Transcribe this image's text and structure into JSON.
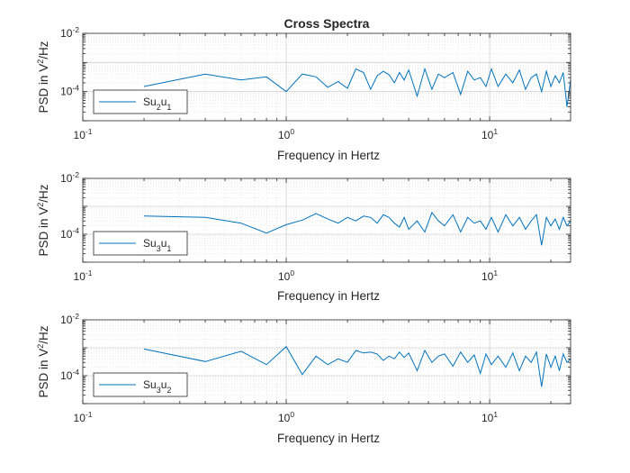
{
  "chart_data": [
    {
      "type": "line",
      "title": "Cross Spectra",
      "xlabel": "Frequency in Hertz",
      "ylabel": "PSD in V²/Hz",
      "xscale": "log",
      "yscale": "log",
      "xlim": [
        0.1,
        25
      ],
      "ylim": [
        1e-05,
        0.01
      ],
      "xticks": [
        {
          "value": 0.1,
          "base": "10",
          "exp": "-1"
        },
        {
          "value": 1,
          "base": "10",
          "exp": "0"
        },
        {
          "value": 10,
          "base": "10",
          "exp": "1"
        }
      ],
      "yticks": [
        {
          "value": 0.0001,
          "base": "10",
          "exp": "-4"
        },
        {
          "value": 0.01,
          "base": "10",
          "exp": "-2"
        }
      ],
      "grid": true,
      "minor_grid": true,
      "legend_position": "bottom-left",
      "series": [
        {
          "legend": {
            "base": "Su",
            "sub1": "2",
            "mid": "u",
            "sub2": "1"
          },
          "color": "#0072BD",
          "x": [
            0.2,
            0.4,
            0.6,
            0.8,
            1.0,
            1.2,
            1.4,
            1.6,
            1.8,
            2.0,
            2.2,
            2.4,
            2.6,
            2.8,
            3.0,
            3.2,
            3.4,
            3.6,
            3.8,
            4.0,
            4.4,
            4.8,
            5.2,
            5.6,
            6.0,
            6.6,
            7.2,
            7.8,
            8.4,
            9.0,
            9.6,
            10.2,
            11.0,
            12.0,
            13.0,
            14.0,
            15.0,
            16.0,
            17.0,
            18.0,
            19.0,
            20.0,
            21.0,
            22.0,
            23.0,
            24.0,
            25.0
          ],
          "y": [
            0.00015,
            0.0004,
            0.00025,
            0.00032,
            0.0001,
            0.0004,
            0.00032,
            0.00014,
            0.00022,
            0.00013,
            0.0006,
            0.00045,
            0.00012,
            0.00035,
            0.0005,
            0.00038,
            0.0002,
            0.00045,
            0.00025,
            0.00055,
            7e-05,
            0.0006,
            0.00012,
            0.0004,
            0.0003,
            0.00045,
            8e-05,
            0.0005,
            0.00025,
            0.0003,
            0.00015,
            0.0006,
            0.00015,
            0.0004,
            0.0002,
            0.00055,
            0.00012,
            0.0003,
            0.0004,
            0.0001,
            0.0005,
            0.00015,
            0.00035,
            0.0002,
            0.00045,
            3e-05,
            0.00025
          ]
        }
      ]
    },
    {
      "type": "line",
      "title": "",
      "xlabel": "Frequency in Hertz",
      "ylabel": "PSD in V²/Hz",
      "xscale": "log",
      "yscale": "log",
      "xlim": [
        0.1,
        25
      ],
      "ylim": [
        1e-05,
        0.01
      ],
      "xticks": [
        {
          "value": 0.1,
          "base": "10",
          "exp": "-1"
        },
        {
          "value": 1,
          "base": "10",
          "exp": "0"
        },
        {
          "value": 10,
          "base": "10",
          "exp": "1"
        }
      ],
      "yticks": [
        {
          "value": 0.0001,
          "base": "10",
          "exp": "-4"
        },
        {
          "value": 0.01,
          "base": "10",
          "exp": "-2"
        }
      ],
      "grid": true,
      "minor_grid": true,
      "legend_position": "bottom-left",
      "series": [
        {
          "legend": {
            "base": "Su",
            "sub1": "3",
            "mid": "u",
            "sub2": "1"
          },
          "color": "#0072BD",
          "x": [
            0.2,
            0.4,
            0.6,
            0.8,
            1.0,
            1.2,
            1.4,
            1.6,
            1.8,
            2.0,
            2.2,
            2.4,
            2.6,
            2.8,
            3.0,
            3.2,
            3.4,
            3.6,
            3.8,
            4.0,
            4.4,
            4.8,
            5.2,
            5.6,
            6.0,
            6.6,
            7.2,
            7.8,
            8.4,
            9.0,
            9.6,
            10.2,
            11.0,
            12.0,
            13.0,
            14.0,
            15.0,
            16.0,
            17.0,
            18.0,
            19.0,
            20.0,
            21.0,
            22.0,
            23.0,
            24.0,
            25.0
          ],
          "y": [
            0.00045,
            0.0004,
            0.00025,
            0.00011,
            0.00022,
            0.00032,
            0.00055,
            0.00035,
            0.00025,
            0.0004,
            0.0003,
            0.00045,
            0.0004,
            0.00025,
            0.0005,
            0.0004,
            0.00025,
            0.00018,
            0.0004,
            0.00015,
            0.0003,
            0.00012,
            0.0006,
            0.0003,
            0.0002,
            0.0005,
            0.00012,
            0.0004,
            0.00025,
            0.0003,
            0.00015,
            0.0004,
            0.00012,
            0.0005,
            0.0002,
            0.0004,
            0.00015,
            0.0003,
            0.0005,
            4e-05,
            0.0004,
            0.0002,
            0.00035,
            0.00015,
            0.0004,
            0.0002,
            0.0003
          ]
        }
      ]
    },
    {
      "type": "line",
      "title": "",
      "xlabel": "Frequency in Hertz",
      "ylabel": "PSD in V²/Hz",
      "xscale": "log",
      "yscale": "log",
      "xlim": [
        0.1,
        25
      ],
      "ylim": [
        1e-05,
        0.01
      ],
      "xticks": [
        {
          "value": 0.1,
          "base": "10",
          "exp": "-1"
        },
        {
          "value": 1,
          "base": "10",
          "exp": "0"
        },
        {
          "value": 10,
          "base": "10",
          "exp": "1"
        }
      ],
      "yticks": [
        {
          "value": 0.0001,
          "base": "10",
          "exp": "-4"
        },
        {
          "value": 0.01,
          "base": "10",
          "exp": "-2"
        }
      ],
      "grid": true,
      "minor_grid": true,
      "legend_position": "bottom-left",
      "series": [
        {
          "legend": {
            "base": "Su",
            "sub1": "3",
            "mid": "u",
            "sub2": "2"
          },
          "color": "#0072BD",
          "x": [
            0.2,
            0.4,
            0.6,
            0.8,
            1.0,
            1.2,
            1.4,
            1.6,
            1.8,
            2.0,
            2.2,
            2.4,
            2.6,
            2.8,
            3.0,
            3.2,
            3.4,
            3.6,
            3.8,
            4.0,
            4.4,
            4.8,
            5.2,
            5.6,
            6.0,
            6.6,
            7.2,
            7.8,
            8.4,
            9.0,
            9.6,
            10.2,
            11.0,
            12.0,
            13.0,
            14.0,
            15.0,
            16.0,
            17.0,
            18.0,
            19.0,
            20.0,
            21.0,
            22.0,
            23.0,
            24.0,
            25.0
          ],
          "y": [
            0.0009,
            0.00032,
            0.00075,
            0.00025,
            0.0011,
            0.00011,
            0.0005,
            0.00025,
            0.0004,
            0.0003,
            0.0008,
            0.00065,
            0.0007,
            0.0006,
            0.00035,
            0.0005,
            0.0004,
            0.0007,
            0.00045,
            0.00065,
            0.00015,
            0.0008,
            0.0003,
            0.0005,
            0.0006,
            0.00022,
            0.0007,
            0.0003,
            0.00055,
            0.00012,
            0.0006,
            0.00025,
            0.0005,
            0.0002,
            0.00065,
            0.00015,
            0.0005,
            0.0003,
            0.0007,
            4e-05,
            0.0006,
            0.0002,
            0.0005,
            0.00015,
            0.0006,
            0.0003,
            0.0004
          ]
        }
      ]
    }
  ]
}
